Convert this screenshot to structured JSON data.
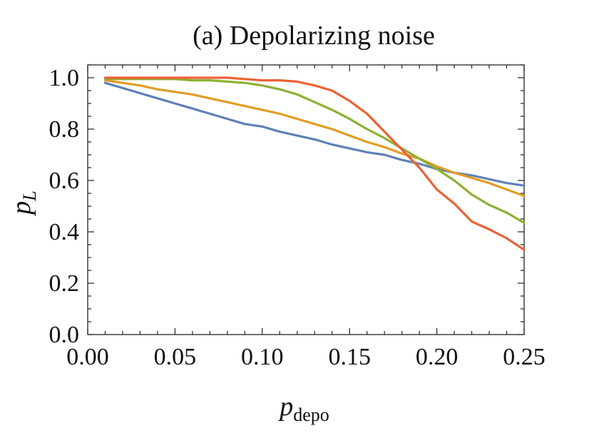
{
  "chart_data": {
    "type": "line",
    "title": "(a)  Depolarizing noise",
    "xlabel": {
      "main": "p",
      "sub": "depo"
    },
    "ylabel": {
      "main": "p",
      "sub": "L"
    },
    "xlim": [
      0.0,
      0.25
    ],
    "ylim": [
      0.0,
      1.05
    ],
    "x_ticks": [
      "0.00",
      "0.05",
      "0.10",
      "0.15",
      "0.20",
      "0.25"
    ],
    "y_ticks": [
      "0.0",
      "0.2",
      "0.4",
      "0.6",
      "0.8",
      "1.0"
    ],
    "x": [
      0.01,
      0.02,
      0.03,
      0.04,
      0.05,
      0.06,
      0.07,
      0.08,
      0.09,
      0.1,
      0.11,
      0.12,
      0.13,
      0.14,
      0.15,
      0.16,
      0.17,
      0.18,
      0.19,
      0.2,
      0.21,
      0.22,
      0.23,
      0.24,
      0.25
    ],
    "series": [
      {
        "name": "blue",
        "color": "#5E81B5",
        "values": [
          0.98,
          0.96,
          0.94,
          0.92,
          0.9,
          0.88,
          0.86,
          0.84,
          0.82,
          0.81,
          0.79,
          0.775,
          0.76,
          0.74,
          0.725,
          0.71,
          0.7,
          0.68,
          0.665,
          0.645,
          0.63,
          0.62,
          0.605,
          0.59,
          0.58
        ]
      },
      {
        "name": "yellow",
        "color": "#E19C24",
        "values": [
          0.99,
          0.98,
          0.97,
          0.955,
          0.945,
          0.935,
          0.92,
          0.905,
          0.89,
          0.875,
          0.86,
          0.84,
          0.82,
          0.8,
          0.775,
          0.75,
          0.73,
          0.705,
          0.685,
          0.655,
          0.63,
          0.61,
          0.59,
          0.565,
          0.54
        ]
      },
      {
        "name": "green",
        "color": "#8FB032",
        "values": [
          0.995,
          0.995,
          0.995,
          0.995,
          0.995,
          0.99,
          0.99,
          0.985,
          0.98,
          0.97,
          0.955,
          0.935,
          0.905,
          0.875,
          0.84,
          0.8,
          0.765,
          0.725,
          0.685,
          0.645,
          0.6,
          0.545,
          0.505,
          0.475,
          0.435
        ]
      },
      {
        "name": "red",
        "color": "#EB6235",
        "values": [
          1.0,
          1.0,
          1.0,
          1.0,
          1.0,
          1.0,
          1.0,
          1.0,
          0.995,
          0.99,
          0.99,
          0.985,
          0.97,
          0.95,
          0.91,
          0.86,
          0.79,
          0.72,
          0.65,
          0.565,
          0.51,
          0.44,
          0.41,
          0.375,
          0.33
        ]
      }
    ]
  }
}
